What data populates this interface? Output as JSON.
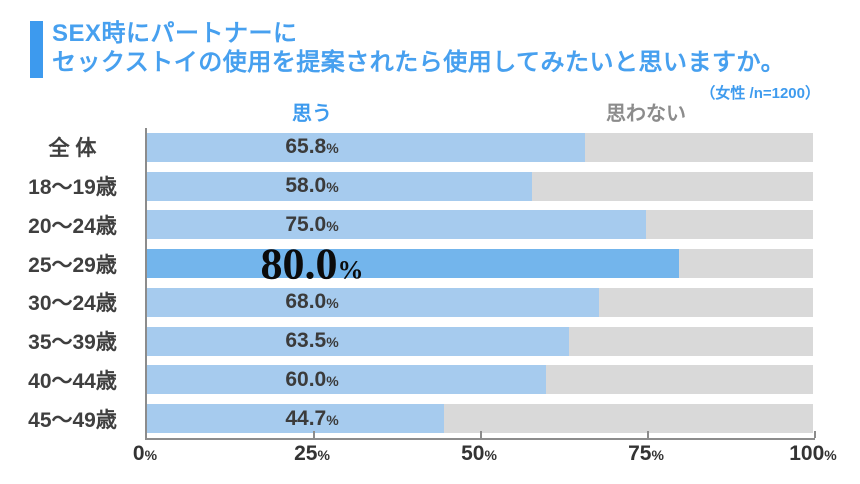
{
  "header": {
    "title_line1": "SEX時にパートナーに",
    "title_line2": "セックストイの使用を提案されたら使用してみたいと思いますか。",
    "note": "（女性 /n=1200）"
  },
  "legend": {
    "yes_label": "思う",
    "no_label": "思わない"
  },
  "colors": {
    "title_blue": "#47A0EF",
    "accent_bar": "#3D9AEE",
    "bar_yes": "#A6CBEE",
    "bar_yes_highlight": "#73B5EC",
    "bar_no": "#D9D9D9",
    "legend_no_gray": "#8C8C8C",
    "value_text": "#3B3B3B",
    "axis": "#8C8C8C"
  },
  "chart_data": {
    "type": "bar",
    "orientation": "horizontal",
    "stacked": true,
    "title": "SEX時にパートナーにセックストイの使用を提案されたら使用してみたいと思いますか。",
    "subtitle": "（女性 /n=1200）",
    "categories": [
      "全 体",
      "18〜19歳",
      "20〜24歳",
      "25〜29歳",
      "30〜24歳",
      "35〜39歳",
      "40〜44歳",
      "45〜49歳"
    ],
    "series": [
      {
        "name": "思う",
        "values": [
          65.8,
          58.0,
          75.0,
          80.0,
          68.0,
          63.5,
          60.0,
          44.7
        ]
      },
      {
        "name": "思わない",
        "values": [
          34.2,
          42.0,
          25.0,
          20.0,
          32.0,
          36.5,
          40.0,
          55.3
        ]
      }
    ],
    "value_labels": [
      "65.8",
      "58.0",
      "75.0",
      "80.0",
      "68.0",
      "63.5",
      "60.0",
      "44.7"
    ],
    "unit": "%",
    "highlight_index": 3,
    "xlim": [
      0,
      100
    ],
    "x_ticks": [
      0,
      25,
      50,
      75,
      100
    ],
    "x_tick_labels": [
      "0",
      "25",
      "50",
      "75",
      "100"
    ],
    "grid": false,
    "legend_position": "top"
  }
}
